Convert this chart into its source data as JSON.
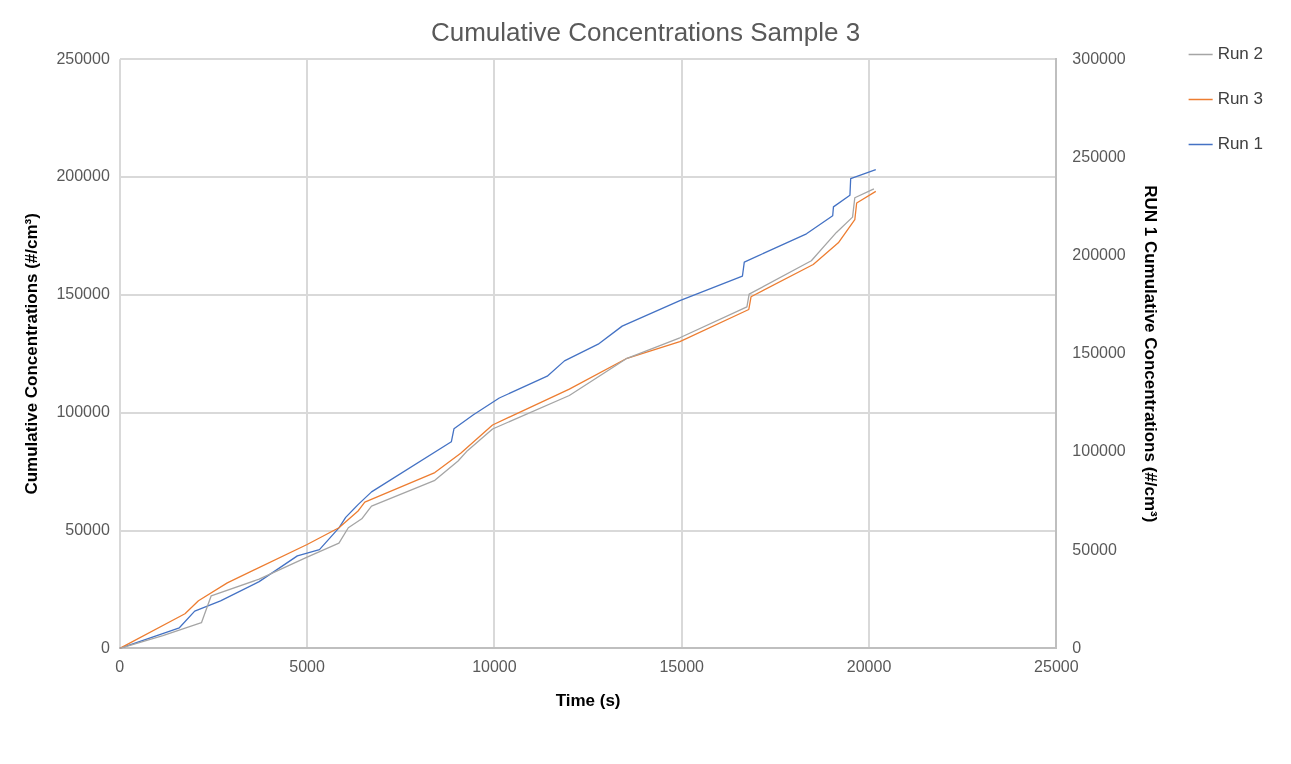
{
  "chart_data": {
    "type": "line",
    "title": "Cumulative Concentrations Sample 3",
    "xlabel": "Time (s)",
    "ylabel": "Cumulative Concentrations (#/cm³)",
    "y2label": "RUN 1 Cumulative Concentrations (#/cm³)",
    "xlim": [
      0,
      25000
    ],
    "xticks": [
      0,
      5000,
      10000,
      15000,
      20000,
      25000
    ],
    "ylim": [
      0,
      250000
    ],
    "yticks": [
      0,
      50000,
      100000,
      150000,
      200000,
      250000
    ],
    "y2lim": [
      0,
      300000
    ],
    "y2ticks": [
      0,
      50000,
      100000,
      150000,
      200000,
      250000,
      300000
    ],
    "grid": true,
    "legend": "top right",
    "marker": "none",
    "line_style": "solid",
    "series": [
      {
        "name": "Run 2",
        "color": "#a5a5a5",
        "x": [
          0,
          1150,
          2180,
          2440,
          3720,
          5000,
          5850,
          6100,
          6460,
          6720,
          8410,
          9030,
          9280,
          9950,
          12000,
          13540,
          14950,
          16740,
          16800,
          18460,
          19130,
          19560,
          19620,
          20130
        ],
        "values": [
          0,
          5400,
          10900,
          22300,
          29400,
          38700,
          44700,
          51200,
          55000,
          60400,
          71300,
          79500,
          83900,
          93100,
          107300,
          123100,
          131800,
          144900,
          150300,
          164500,
          176500,
          183000,
          191200,
          195000
        ]
      },
      {
        "name": "Run 3",
        "color": "#ed7d31",
        "x": [
          0,
          1740,
          2100,
          2870,
          5000,
          5850,
          6360,
          6540,
          8410,
          9100,
          9950,
          12000,
          13540,
          14950,
          16790,
          16850,
          18510,
          19180,
          19620,
          19670,
          20180
        ],
        "values": [
          0,
          14700,
          20200,
          27800,
          44100,
          51200,
          58300,
          62100,
          74600,
          82800,
          94800,
          110000,
          123100,
          130200,
          143800,
          149200,
          162900,
          172100,
          181900,
          189000,
          193900
        ]
      },
      {
        "name": "Run 1",
        "color": "#4472c4",
        "axis": "y2",
        "x": [
          0,
          1590,
          2000,
          2690,
          3720,
          4740,
          5330,
          5850,
          6030,
          6360,
          6720,
          8850,
          8920,
          9440,
          10130,
          11410,
          11870,
          12770,
          13410,
          14950,
          16620,
          16670,
          18330,
          19030,
          19050,
          19490,
          19510,
          20180
        ],
        "values": [
          0,
          10500,
          19000,
          24200,
          34000,
          47100,
          50300,
          61400,
          66700,
          73200,
          79700,
          105200,
          111800,
          119000,
          127500,
          138600,
          146400,
          154900,
          164100,
          177100,
          189500,
          196700,
          211100,
          220300,
          224800,
          230700,
          239200,
          243800
        ]
      }
    ]
  }
}
